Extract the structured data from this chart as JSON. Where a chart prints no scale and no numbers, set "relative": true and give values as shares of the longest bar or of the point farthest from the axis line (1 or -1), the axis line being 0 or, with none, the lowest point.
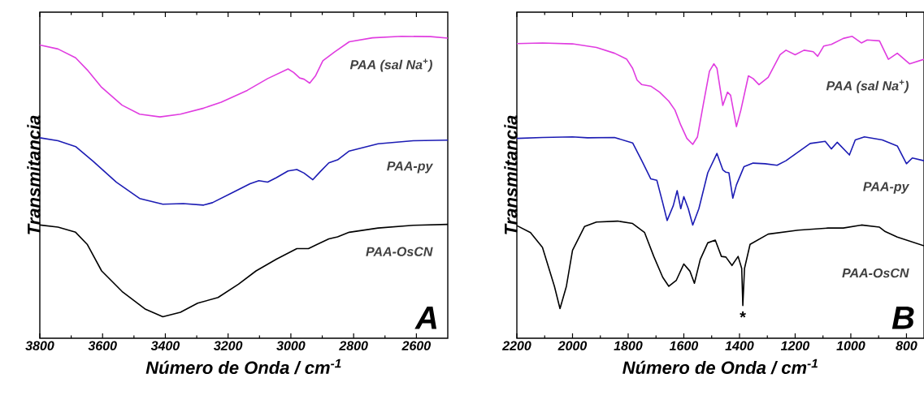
{
  "chart_data": [
    {
      "type": "line",
      "relative": true,
      "xlabel": "Número de Onda / cm$^{-1}$",
      "ylabel": "Transmitancia",
      "xlim": [
        3800,
        2500
      ],
      "xticks": [
        3800,
        3600,
        3400,
        3200,
        3000,
        2800,
        2600
      ],
      "tick_labels": "x",
      "annotations": [
        "A"
      ],
      "series": [
        {
          "name": "PAA (sal Na$^{+}$)",
          "color": "#e03ce0",
          "x": [
            3800,
            3742,
            3686,
            3649,
            3603,
            3538,
            3482,
            3417,
            3352,
            3278,
            3222,
            3139,
            3074,
            3009,
            2991,
            2972,
            2958,
            2940,
            2921,
            2898,
            2861,
            2814,
            2740,
            2647,
            2555,
            2500
          ],
          "values": [
            0.971,
            0.958,
            0.929,
            0.889,
            0.831,
            0.772,
            0.742,
            0.733,
            0.742,
            0.762,
            0.782,
            0.821,
            0.86,
            0.892,
            0.88,
            0.862,
            0.858,
            0.845,
            0.87,
            0.919,
            0.948,
            0.982,
            0.995,
            1.0,
            0.999,
            0.994
          ]
        },
        {
          "name": "PAA-py",
          "color": "#1c1cb4",
          "x": [
            3800,
            3742,
            3686,
            3630,
            3556,
            3482,
            3408,
            3343,
            3278,
            3250,
            3185,
            3130,
            3102,
            3074,
            3046,
            3009,
            2981,
            2958,
            2930,
            2907,
            2879,
            2851,
            2814,
            2722,
            2610,
            2500
          ],
          "values": [
            0.664,
            0.654,
            0.635,
            0.586,
            0.517,
            0.463,
            0.444,
            0.446,
            0.441,
            0.449,
            0.483,
            0.512,
            0.522,
            0.517,
            0.532,
            0.554,
            0.559,
            0.547,
            0.525,
            0.551,
            0.581,
            0.591,
            0.62,
            0.644,
            0.654,
            0.656
          ]
        },
        {
          "name": "PAA-OsCN",
          "color": "#000000",
          "x": [
            3800,
            3742,
            3686,
            3649,
            3603,
            3538,
            3463,
            3408,
            3352,
            3297,
            3232,
            3167,
            3111,
            3046,
            2981,
            2944,
            2916,
            2879,
            2851,
            2814,
            2722,
            2610,
            2500
          ],
          "values": [
            0.375,
            0.368,
            0.351,
            0.311,
            0.223,
            0.155,
            0.096,
            0.071,
            0.086,
            0.116,
            0.135,
            0.179,
            0.223,
            0.262,
            0.297,
            0.297,
            0.311,
            0.329,
            0.336,
            0.351,
            0.365,
            0.374,
            0.377
          ]
        }
      ]
    },
    {
      "type": "line",
      "relative": true,
      "xlabel": "Número de Onda / cm$^{-1}$",
      "ylabel": "Transmitancia",
      "xlim": [
        2200,
        737
      ],
      "xticks": [
        2200,
        2000,
        1800,
        1600,
        1400,
        1200,
        1000,
        800
      ],
      "tick_labels": "x",
      "annotations": [
        "B",
        {
          "text": "*",
          "x": 1388,
          "y": 0.108
        }
      ],
      "series": [
        {
          "name": "PAA (sal Na$^{+}$)",
          "color": "#e03ce0",
          "x": [
            2200,
            2108,
            2000,
            1914,
            1849,
            1805,
            1784,
            1768,
            1751,
            1719,
            1687,
            1654,
            1632,
            1611,
            1589,
            1568,
            1551,
            1530,
            1508,
            1492,
            1481,
            1460,
            1443,
            1432,
            1411,
            1395,
            1368,
            1351,
            1330,
            1297,
            1254,
            1233,
            1200,
            1168,
            1135,
            1119,
            1097,
            1070,
            1027,
            995,
            962,
            941,
            897,
            865,
            833,
            789,
            737
          ],
          "values": [
            0.976,
            0.978,
            0.975,
            0.963,
            0.944,
            0.924,
            0.894,
            0.855,
            0.84,
            0.835,
            0.815,
            0.785,
            0.756,
            0.706,
            0.662,
            0.642,
            0.667,
            0.775,
            0.884,
            0.909,
            0.894,
            0.771,
            0.815,
            0.805,
            0.701,
            0.756,
            0.869,
            0.86,
            0.84,
            0.864,
            0.939,
            0.954,
            0.939,
            0.954,
            0.949,
            0.934,
            0.968,
            0.973,
            0.993,
            1.0,
            0.978,
            0.988,
            0.985,
            0.924,
            0.944,
            0.909,
            0.924
          ]
        },
        {
          "name": "PAA-py",
          "color": "#1c1cb4",
          "x": [
            2200,
            2108,
            2000,
            1946,
            1849,
            1784,
            1751,
            1719,
            1697,
            1676,
            1660,
            1638,
            1624,
            1611,
            1600,
            1584,
            1568,
            1546,
            1514,
            1481,
            1460,
            1449,
            1438,
            1424,
            1411,
            1384,
            1351,
            1308,
            1265,
            1233,
            1189,
            1146,
            1092,
            1070,
            1049,
            1005,
            984,
            951,
            887,
            833,
            800,
            779,
            737
          ],
          "values": [
            0.662,
            0.665,
            0.667,
            0.664,
            0.665,
            0.647,
            0.588,
            0.528,
            0.523,
            0.449,
            0.39,
            0.439,
            0.489,
            0.429,
            0.469,
            0.429,
            0.375,
            0.429,
            0.548,
            0.612,
            0.558,
            0.55,
            0.548,
            0.464,
            0.508,
            0.568,
            0.58,
            0.578,
            0.573,
            0.588,
            0.617,
            0.645,
            0.652,
            0.627,
            0.649,
            0.607,
            0.657,
            0.667,
            0.657,
            0.637,
            0.578,
            0.597,
            0.588
          ]
        },
        {
          "name": "PAA-OsCN",
          "color": "#000000",
          "x": [
            2200,
            2151,
            2108,
            2065,
            2045,
            2022,
            2000,
            1957,
            1914,
            1838,
            1784,
            1741,
            1708,
            1676,
            1654,
            1627,
            1600,
            1578,
            1562,
            1541,
            1514,
            1487,
            1465,
            1449,
            1427,
            1405,
            1392,
            1388,
            1382,
            1362,
            1297,
            1189,
            1081,
            1027,
            962,
            897,
            876,
            833,
            737
          ],
          "values": [
            0.373,
            0.35,
            0.301,
            0.172,
            0.098,
            0.172,
            0.291,
            0.37,
            0.385,
            0.388,
            0.38,
            0.35,
            0.271,
            0.202,
            0.172,
            0.192,
            0.246,
            0.222,
            0.182,
            0.261,
            0.316,
            0.325,
            0.271,
            0.269,
            0.241,
            0.271,
            0.231,
            0.108,
            0.231,
            0.311,
            0.345,
            0.358,
            0.365,
            0.365,
            0.375,
            0.368,
            0.353,
            0.335,
            0.306
          ]
        }
      ]
    }
  ]
}
